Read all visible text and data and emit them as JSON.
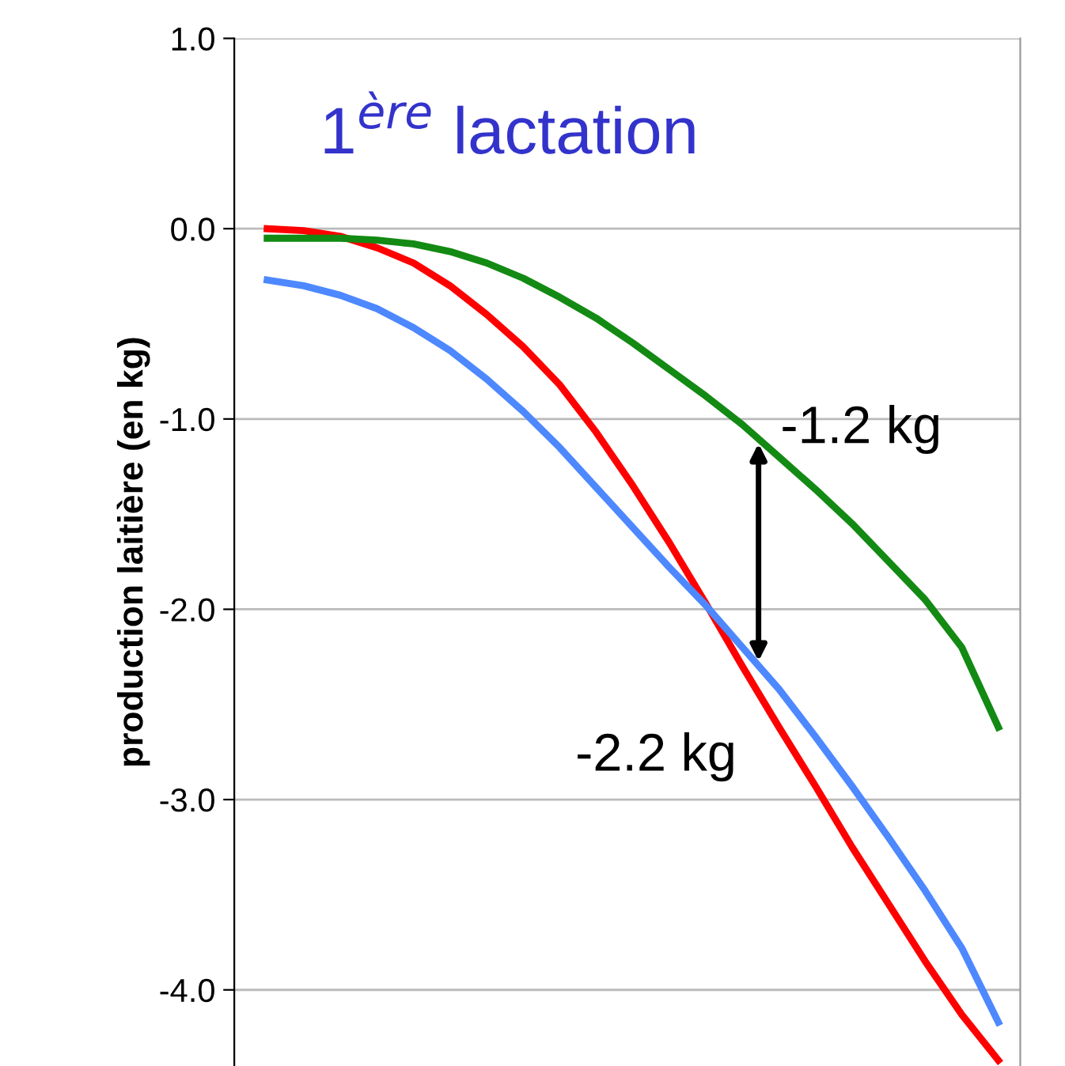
{
  "chart_data": {
    "type": "line",
    "title": "1$^{ère}$ lactation",
    "ylabel": "production laitière (en kg)",
    "categories": [
      null,
      null,
      null,
      null,
      null,
      null,
      null,
      null,
      null,
      null,
      null,
      null,
      null,
      null,
      null,
      null,
      null,
      null,
      null,
      null,
      null
    ],
    "series": [
      {
        "color": "#ff0000",
        "values": [
          0.0,
          -0.01,
          -0.04,
          -0.1,
          -0.18,
          -0.3,
          -0.45,
          -0.62,
          -0.82,
          -1.07,
          -1.35,
          -1.65,
          -1.97,
          -2.3,
          -2.62,
          -2.93,
          -3.25,
          -3.55,
          -3.85,
          -4.13,
          -4.37
        ]
      },
      {
        "color": "#4d88ff",
        "values": [
          -0.27,
          -0.3,
          -0.35,
          -0.42,
          -0.52,
          -0.64,
          -0.79,
          -0.96,
          -1.15,
          -1.36,
          -1.57,
          -1.78,
          -1.98,
          -2.2,
          -2.42,
          -2.67,
          -2.93,
          -3.2,
          -3.48,
          -3.78,
          -4.17
        ]
      },
      {
        "color": "#138a13",
        "values": [
          -0.05,
          -0.05,
          -0.05,
          -0.06,
          -0.08,
          -0.12,
          -0.18,
          -0.26,
          -0.36,
          -0.47,
          -0.6,
          -0.74,
          -0.88,
          -1.03,
          -1.2,
          -1.37,
          -1.55,
          -1.75,
          -1.95,
          -2.2,
          -2.62
        ]
      }
    ],
    "annotations": [
      "-1.2 kg",
      "-2.2 kg"
    ],
    "ylim": [
      -4.4,
      1.0
    ],
    "yticks": [
      {
        "value": 1.0,
        "label": "1.0"
      },
      {
        "value": 0.0,
        "label": "0.0"
      },
      {
        "value": -1.0,
        "label": "-1.0"
      },
      {
        "value": -2.0,
        "label": "-2.0"
      },
      {
        "value": -3.0,
        "label": "-3.0"
      },
      {
        "value": -4.0,
        "label": "-4.0"
      }
    ],
    "grid": "y",
    "tick_labels": "y",
    "marker": "none",
    "line_style": "solid"
  }
}
